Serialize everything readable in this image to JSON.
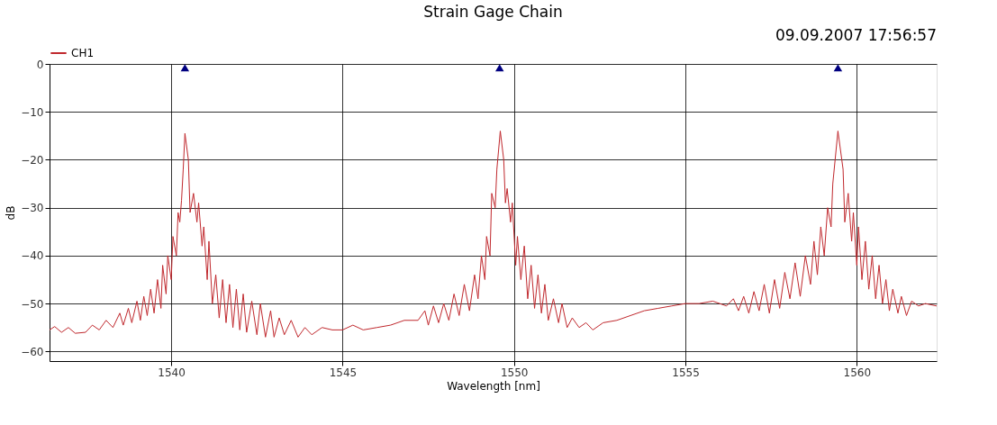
{
  "chart_data": {
    "type": "line",
    "title": "Strain Gage Chain",
    "xlabel": "Wavelength [nm]",
    "ylabel": "dB",
    "annotations": [
      "09.09.2007 17:56:57"
    ],
    "xlim": [
      1536.45,
      1562.33
    ],
    "xticks": [
      1540,
      1545,
      1550,
      1555,
      1560
    ],
    "ylim": [
      -62,
      0
    ],
    "yticks": [
      -60,
      -50,
      -40,
      -30,
      -20,
      -10,
      0
    ],
    "grid": true,
    "legend": "top left",
    "line_style": "solid",
    "marker": "none",
    "series": [
      {
        "name": "CH1",
        "color": "#c0282d",
        "x": [
          1536.45,
          1536.6,
          1536.8,
          1537.0,
          1537.2,
          1537.5,
          1537.7,
          1537.9,
          1538.1,
          1538.3,
          1538.5,
          1538.6,
          1538.75,
          1538.85,
          1539.0,
          1539.1,
          1539.2,
          1539.3,
          1539.4,
          1539.5,
          1539.6,
          1539.7,
          1539.75,
          1539.85,
          1539.9,
          1540.0,
          1540.05,
          1540.15,
          1540.2,
          1540.25,
          1540.3,
          1540.35,
          1540.4,
          1540.5,
          1540.55,
          1540.65,
          1540.75,
          1540.8,
          1540.9,
          1540.95,
          1541.05,
          1541.1,
          1541.2,
          1541.3,
          1541.4,
          1541.5,
          1541.6,
          1541.7,
          1541.8,
          1541.9,
          1542.0,
          1542.1,
          1542.2,
          1542.35,
          1542.5,
          1542.6,
          1542.75,
          1542.9,
          1543.0,
          1543.15,
          1543.3,
          1543.5,
          1543.7,
          1543.9,
          1544.1,
          1544.4,
          1544.7,
          1545.0,
          1545.3,
          1545.6,
          1546.0,
          1546.4,
          1546.8,
          1547.2,
          1547.4,
          1547.5,
          1547.65,
          1547.8,
          1547.95,
          1548.1,
          1548.25,
          1548.4,
          1548.55,
          1548.7,
          1548.85,
          1548.95,
          1549.05,
          1549.15,
          1549.2,
          1549.3,
          1549.35,
          1549.45,
          1549.5,
          1549.6,
          1549.7,
          1549.75,
          1549.8,
          1549.9,
          1549.95,
          1550.05,
          1550.1,
          1550.2,
          1550.3,
          1550.4,
          1550.5,
          1550.6,
          1550.7,
          1550.8,
          1550.9,
          1551.0,
          1551.15,
          1551.3,
          1551.4,
          1551.55,
          1551.7,
          1551.9,
          1552.1,
          1552.3,
          1552.6,
          1553.0,
          1553.4,
          1553.8,
          1554.2,
          1554.6,
          1555.0,
          1555.4,
          1555.8,
          1556.2,
          1556.4,
          1556.55,
          1556.7,
          1556.85,
          1557.0,
          1557.15,
          1557.3,
          1557.45,
          1557.6,
          1557.75,
          1557.9,
          1558.05,
          1558.2,
          1558.35,
          1558.5,
          1558.65,
          1558.75,
          1558.85,
          1558.95,
          1559.05,
          1559.15,
          1559.25,
          1559.3,
          1559.45,
          1559.6,
          1559.65,
          1559.75,
          1559.85,
          1559.9,
          1560.0,
          1560.05,
          1560.15,
          1560.25,
          1560.35,
          1560.45,
          1560.55,
          1560.65,
          1560.75,
          1560.85,
          1560.95,
          1561.05,
          1561.2,
          1561.3,
          1561.45,
          1561.6,
          1561.8,
          1562.0,
          1562.33
        ],
        "values": [
          -55.5,
          -54.8,
          -56,
          -55,
          -56.2,
          -56,
          -54.5,
          -55.5,
          -53.5,
          -55,
          -52,
          -54.5,
          -51,
          -54,
          -49.5,
          -53.5,
          -48.5,
          -52.5,
          -47,
          -52,
          -45,
          -51,
          -42,
          -48,
          -40,
          -45,
          -36,
          -40,
          -31,
          -33,
          -28.5,
          -22,
          -14.5,
          -20,
          -31,
          -27,
          -33,
          -29,
          -38,
          -34,
          -45,
          -37,
          -50,
          -44,
          -53,
          -45,
          -54,
          -46,
          -55,
          -47,
          -55.5,
          -48,
          -56,
          -49.5,
          -56.5,
          -50,
          -57,
          -51.5,
          -57,
          -53,
          -56.5,
          -53.5,
          -57,
          -55,
          -56.5,
          -55,
          -55.5,
          -55.5,
          -54.5,
          -55.5,
          -55,
          -54.5,
          -53.5,
          -53.5,
          -51.5,
          -54.5,
          -50.5,
          -54,
          -50,
          -53.5,
          -48,
          -52.5,
          -46,
          -51.5,
          -44,
          -49,
          -40,
          -45,
          -36,
          -40,
          -27,
          -30,
          -22,
          -14,
          -20,
          -29,
          -26,
          -33,
          -29,
          -42,
          -36,
          -45,
          -38,
          -49,
          -42,
          -51,
          -44,
          -52,
          -46,
          -53.5,
          -49,
          -54,
          -50,
          -55,
          -53,
          -55,
          -54,
          -55.5,
          -54,
          -53.5,
          -52.5,
          -51.5,
          -51,
          -50.5,
          -50,
          -50,
          -49.5,
          -50.5,
          -49,
          -51.5,
          -48.5,
          -52,
          -47.5,
          -51.5,
          -46,
          -52,
          -45,
          -51,
          -43.5,
          -49,
          -41.5,
          -48.5,
          -40,
          -46,
          -37,
          -44,
          -34,
          -40,
          -30,
          -34,
          -25,
          -14,
          -22,
          -33,
          -27,
          -37,
          -31,
          -42,
          -34,
          -45,
          -37,
          -47,
          -40,
          -49,
          -42,
          -50,
          -45,
          -51.5,
          -47,
          -52,
          -48.5,
          -52.5,
          -49.5,
          -50.5,
          -50,
          -50.5
        ]
      },
      {
        "type": "scatter",
        "marker": "triangle",
        "color": "#000080",
        "x": [
          1540.4,
          1549.58,
          1559.45
        ],
        "values": [
          -0.8,
          -0.8,
          -0.8
        ]
      }
    ]
  }
}
